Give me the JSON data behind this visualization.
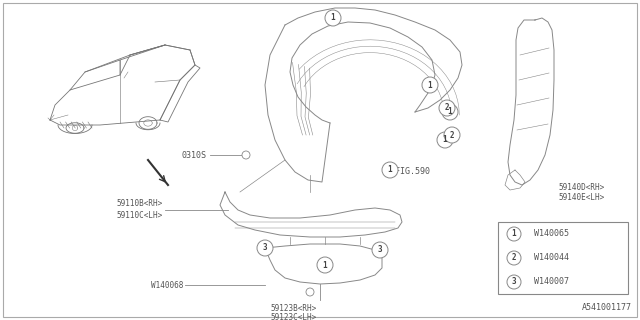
{
  "bg_color": "#ffffff",
  "line_color": "#888888",
  "text_color": "#555555",
  "fig_width": 6.4,
  "fig_height": 3.2,
  "dpi": 100,
  "legend_items": [
    {
      "num": "1",
      "code": "W140065"
    },
    {
      "num": "2",
      "code": "W140044"
    },
    {
      "num": "3",
      "code": "W140007"
    }
  ],
  "footnote": "A541001177"
}
